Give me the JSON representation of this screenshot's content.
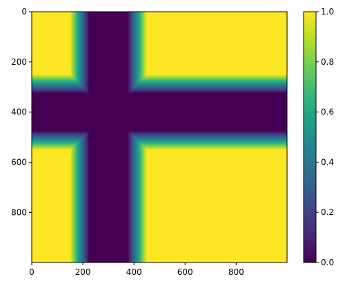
{
  "chart_data": {
    "type": "heatmap",
    "title": "",
    "xlabel": "",
    "ylabel": "",
    "xlim": [
      0,
      999
    ],
    "ylim": [
      999,
      0
    ],
    "x_ticks": [
      0,
      200,
      400,
      600,
      800
    ],
    "y_ticks": [
      0,
      200,
      400,
      600,
      800
    ],
    "x_tick_labels": [
      "0",
      "200",
      "400",
      "600",
      "800"
    ],
    "y_tick_labels": [
      "0",
      "200",
      "400",
      "600",
      "800"
    ],
    "grid": false,
    "colormap": "viridis",
    "value_range": [
      0.0,
      1.0
    ],
    "colorbar": {
      "placement": "right",
      "ticks": [
        0.0,
        0.2,
        0.4,
        0.6,
        0.8,
        1.0
      ],
      "tick_labels": [
        "0.0",
        "0.2",
        "0.4",
        "0.6",
        "0.8",
        "1.0"
      ]
    },
    "structure": {
      "description_values_in_data_units": true,
      "vertical_band": {
        "x_center": 300,
        "core_half_width": 75,
        "ramp_width": 75,
        "x_extent_low": [
          225,
          375
        ],
        "x_extent_ramp": [
          150,
          450
        ]
      },
      "horizontal_band": {
        "y_center": 400,
        "core_half_width": 75,
        "ramp_width": 75,
        "y_extent_low": [
          325,
          475
        ],
        "y_extent_ramp": [
          250,
          550
        ]
      },
      "center_value": 0.0,
      "outside_value": 1.0,
      "intersection": "octagon of value 0 at the crossing"
    }
  }
}
